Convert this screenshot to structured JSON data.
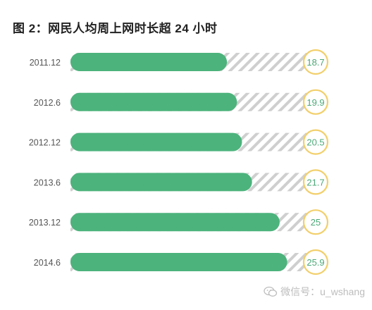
{
  "chart_data": {
    "type": "bar",
    "title": "图 2：网民人均周上网时长超 24 小时",
    "categories": [
      "2011.12",
      "2012.6",
      "2012.12",
      "2013.6",
      "2013.12",
      "2014.6"
    ],
    "values": [
      18.7,
      19.9,
      20.5,
      21.7,
      25,
      25.9
    ],
    "value_labels": [
      "18.7",
      "19.9",
      "20.5",
      "21.7",
      "25",
      "25.9"
    ],
    "orientation": "horizontal",
    "xlim": [
      0,
      29.3
    ],
    "grid": false,
    "colors": {
      "bar": "#4cb37c",
      "track_stripe": "#cfcfcf",
      "circle_stroke": "#f2cf6a",
      "value_text": "#4aa877",
      "category_text": "#555555"
    }
  },
  "watermark": {
    "icon": "wechat-icon",
    "text": "微信号：u_wshang"
  }
}
